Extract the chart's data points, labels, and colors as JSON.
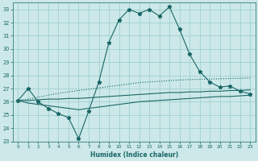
{
  "xlabel": "Humidex (Indice chaleur)",
  "xlim": [
    -0.5,
    23.5
  ],
  "ylim": [
    23,
    33.5
  ],
  "yticks": [
    23,
    24,
    25,
    26,
    27,
    28,
    29,
    30,
    31,
    32,
    33
  ],
  "xticks": [
    0,
    1,
    2,
    3,
    4,
    5,
    6,
    7,
    8,
    9,
    10,
    11,
    12,
    13,
    14,
    15,
    16,
    17,
    18,
    19,
    20,
    21,
    22,
    23
  ],
  "bg_color": "#cce8e8",
  "grid_color": "#99cccc",
  "line_color": "#1a6666",
  "curve1_x": [
    0,
    1,
    2,
    3,
    4,
    5,
    6,
    7,
    8,
    9,
    10,
    11,
    12,
    13,
    14,
    15,
    16,
    17,
    18,
    19,
    20,
    21,
    22,
    23
  ],
  "curve1_y": [
    26.1,
    27.0,
    26.0,
    25.5,
    25.1,
    24.8,
    23.2,
    25.3,
    27.5,
    30.5,
    32.2,
    33.0,
    32.7,
    33.0,
    32.5,
    33.2,
    31.5,
    29.6,
    28.3,
    27.5,
    27.1,
    27.2,
    26.8,
    26.6
  ],
  "curve2_x": [
    0,
    1,
    2,
    3,
    4,
    5,
    6,
    7,
    8,
    9,
    10,
    11,
    12,
    13,
    14,
    15,
    16,
    17,
    18,
    19,
    20,
    21,
    22,
    23
  ],
  "curve2_y": [
    26.1,
    26.1,
    26.15,
    26.2,
    26.2,
    26.25,
    26.25,
    26.3,
    26.35,
    26.4,
    26.45,
    26.5,
    26.55,
    26.6,
    26.65,
    26.7,
    26.7,
    26.75,
    26.75,
    26.8,
    26.8,
    26.85,
    26.85,
    26.9
  ],
  "curve3_x": [
    0,
    1,
    2,
    3,
    4,
    5,
    6,
    7,
    8,
    9,
    10,
    11,
    12,
    13,
    14,
    15,
    16,
    17,
    18,
    19,
    20,
    21,
    22,
    23
  ],
  "curve3_y": [
    26.1,
    25.9,
    25.8,
    25.7,
    25.6,
    25.5,
    25.4,
    25.5,
    25.6,
    25.7,
    25.8,
    25.9,
    26.0,
    26.05,
    26.1,
    26.15,
    26.2,
    26.25,
    26.3,
    26.35,
    26.4,
    26.4,
    26.45,
    26.5
  ],
  "dotted_x": [
    0,
    1,
    2,
    3,
    4,
    5,
    6,
    7,
    8,
    9,
    10,
    11,
    12,
    13,
    14,
    15,
    16,
    17,
    18,
    19,
    20,
    21,
    22,
    23
  ],
  "dotted_y": [
    26.1,
    26.2,
    26.35,
    26.5,
    26.65,
    26.75,
    26.85,
    26.95,
    27.05,
    27.15,
    27.25,
    27.35,
    27.45,
    27.5,
    27.55,
    27.6,
    27.65,
    27.68,
    27.7,
    27.72,
    27.74,
    27.76,
    27.78,
    27.8
  ],
  "marker": "*",
  "markersize": 3.5,
  "linewidth": 0.8
}
